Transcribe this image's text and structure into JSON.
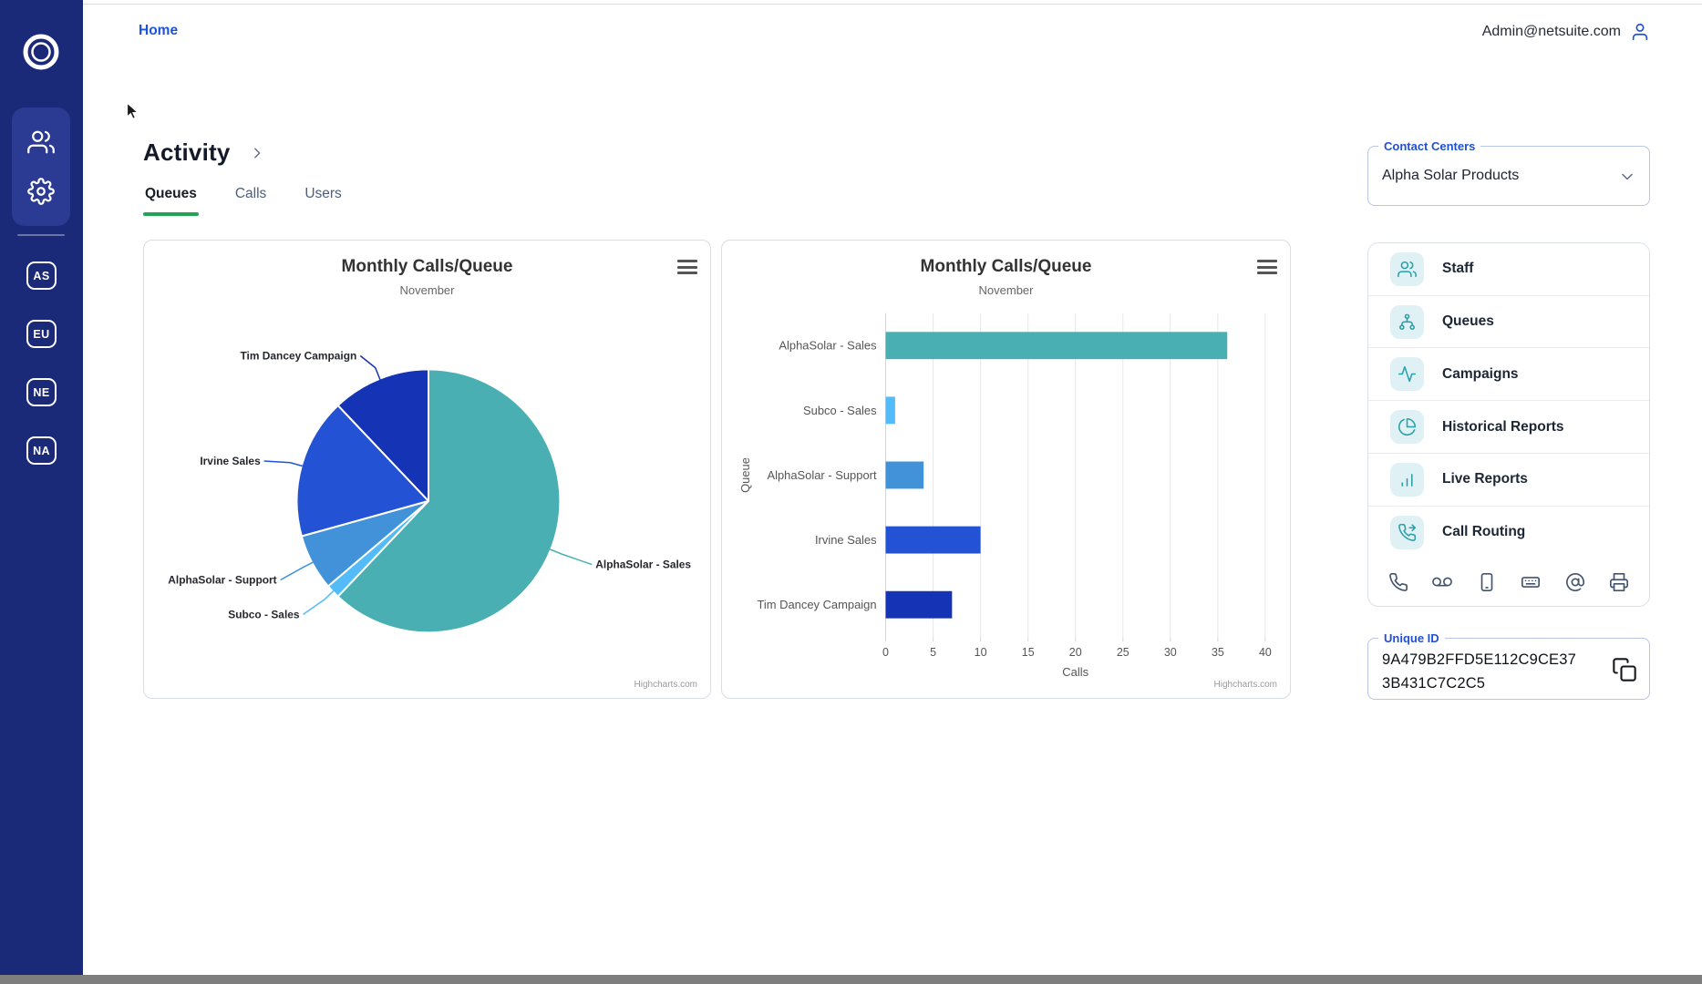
{
  "topbar": {
    "home_label": "Home",
    "account_email": "Admin@netsuite.com"
  },
  "sidebar": {
    "nav_icons": [
      "people",
      "settings"
    ],
    "badges": [
      "AS",
      "EU",
      "NE",
      "NA"
    ]
  },
  "page": {
    "title": "Activity",
    "tabs": [
      {
        "label": "Queues",
        "active": true
      },
      {
        "label": "Calls",
        "active": false
      },
      {
        "label": "Users",
        "active": false
      }
    ],
    "accent_green": "#23a455"
  },
  "chart_data": [
    {
      "type": "pie",
      "title": "Monthly Calls/Queue",
      "subtitle": "November",
      "series_name": "Calls",
      "categories": [
        "AlphaSolar - Sales",
        "Subco - Sales",
        "AlphaSolar - Support",
        "Irvine Sales",
        "Tim Dancey Campaign"
      ],
      "values": [
        36,
        1,
        4,
        10,
        7
      ],
      "colors": [
        "#49AFB2",
        "#54BBF9",
        "#4192D9",
        "#2353D4",
        "#1433B5"
      ],
      "legend": "off",
      "credit": "Highcharts.com"
    },
    {
      "type": "bar",
      "title": "Monthly Calls/Queue",
      "subtitle": "November",
      "categories": [
        "AlphaSolar - Sales",
        "Subco - Sales",
        "AlphaSolar - Support",
        "Irvine Sales",
        "Tim Dancey Campaign"
      ],
      "values": [
        36,
        1,
        4,
        10,
        7
      ],
      "colors": [
        "#49AFB2",
        "#54BBF9",
        "#4192D9",
        "#2353D4",
        "#1433B5"
      ],
      "xlabel": "Calls",
      "ylabel": "Queue",
      "xlim": [
        0,
        40
      ],
      "tick_interval": 5,
      "x_ticks": [
        0,
        5,
        10,
        15,
        20,
        25,
        30,
        35,
        40
      ],
      "grid": "on",
      "credit": "Highcharts.com"
    }
  ],
  "right_panel": {
    "contact_centers": {
      "label": "Contact Centers",
      "value": "Alpha Solar Products"
    },
    "menu": [
      {
        "label": "Staff",
        "icon": "staff"
      },
      {
        "label": "Queues",
        "icon": "queues"
      },
      {
        "label": "Campaigns",
        "icon": "campaigns"
      },
      {
        "label": "Historical Reports",
        "icon": "historical-reports"
      },
      {
        "label": "Live Reports",
        "icon": "live-reports"
      },
      {
        "label": "Call Routing",
        "icon": "call-routing"
      }
    ],
    "channel_icons": [
      "phone",
      "voicemail",
      "mobile",
      "keyboard",
      "at-sign",
      "printer"
    ],
    "unique_id": {
      "label": "Unique ID",
      "lines": [
        "9A479B2FFD5E112C9CE37",
        "3B431C7C2C5"
      ]
    }
  }
}
